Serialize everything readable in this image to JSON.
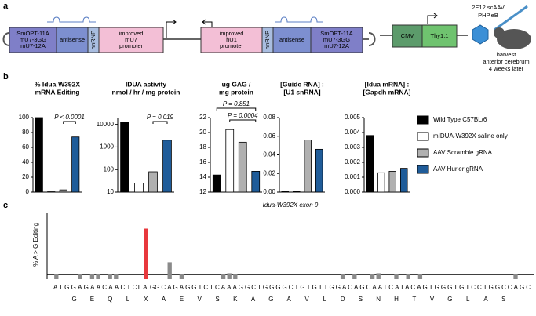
{
  "panels": {
    "a": "a",
    "b": "b",
    "c": "c"
  },
  "diagram": {
    "left_cassette": [
      "SmOPT-11A",
      "mU7-3GG",
      "mU7-12A"
    ],
    "antisense_left": "antisense",
    "hnrnp_left": "hnRNP",
    "promoter_left": [
      "improved",
      "mU7",
      "promoter"
    ],
    "promoter_right": [
      "improved",
      "hU1",
      "promoter"
    ],
    "hnrnp_right": "hnRNP",
    "antisense_right": "antisense",
    "right_cassette": [
      "SmOPT-11A",
      "mU7-3GG",
      "mU7-12A"
    ],
    "cmv": "CMV",
    "thy": "Thy1.1",
    "vector": [
      "2E12 scAAV",
      "PHP.eB"
    ],
    "harvest": [
      "harvest",
      "anterior cerebrum",
      "4 weeks later"
    ]
  },
  "legend": [
    {
      "name": "Wild Type C57BL/6",
      "color": "#000000"
    },
    {
      "name": "mIDUA-W392X saline only",
      "color": "#ffffff"
    },
    {
      "name": "AAV Scramble gRNA",
      "color": "#b0b0b0"
    },
    {
      "name": "AAV Hurler gRNA",
      "color": "#1f5c99"
    }
  ],
  "chart_data": [
    {
      "type": "bar",
      "title": [
        "% Idua-W392X",
        "mRNA Editing"
      ],
      "values": [
        100,
        0.5,
        3,
        74
      ],
      "ylim": [
        0,
        100
      ],
      "yticks": [
        0,
        20,
        40,
        60,
        80,
        100
      ],
      "annotations": [
        "P < 0.0001"
      ]
    },
    {
      "type": "bar",
      "title": [
        "IDUA activity",
        "nmol / hr / mg protein"
      ],
      "values": [
        12000,
        25,
        80,
        2000
      ],
      "log": true,
      "ylim": [
        10,
        20000
      ],
      "yticks": [
        10,
        100,
        1000,
        10000
      ],
      "annotations": [
        "P = 0.019"
      ]
    },
    {
      "type": "bar",
      "title": [
        "ug GAG /",
        "mg protein"
      ],
      "values": [
        14.3,
        20.4,
        18.7,
        14.8
      ],
      "ylim": [
        12,
        22
      ],
      "yticks": [
        12,
        14,
        16,
        18,
        20,
        22
      ],
      "annotations": [
        "P = 0.851",
        "P = 0.0004"
      ]
    },
    {
      "type": "bar",
      "title": [
        "[Guide RNA] :",
        "[U1 snRNA]"
      ],
      "values": [
        0.0005,
        0.0005,
        0.056,
        0.046
      ],
      "ylim": [
        0,
        0.08
      ],
      "yticks": [
        {
          "value": 0,
          "label": "0.00"
        },
        {
          "value": 0.02,
          "label": "0.02"
        },
        {
          "value": 0.04,
          "label": "0.04"
        },
        {
          "value": 0.06,
          "label": "0.06"
        },
        {
          "value": 0.08,
          "label": "0.08"
        }
      ]
    },
    {
      "type": "bar",
      "title": [
        "[Idua mRNA] :",
        "[Gapdh mRNA]"
      ],
      "values": [
        0.0038,
        0.0013,
        0.0014,
        0.0016
      ],
      "ylim": [
        0,
        0.005
      ],
      "yticks": [
        {
          "value": 0,
          "label": "0.000"
        },
        {
          "value": 0.001,
          "label": "0.001"
        },
        {
          "value": 0.002,
          "label": "0.002"
        },
        {
          "value": 0.003,
          "label": "0.003"
        },
        {
          "value": 0.004,
          "label": "0.004"
        },
        {
          "value": 0.005,
          "label": "0.005"
        }
      ]
    },
    {
      "type": "seqbar",
      "title": "Idua-W392X exon 9",
      "ylabel": "% A > G Editing",
      "color": "#8a8a8a",
      "highlight_color": "#e8383d",
      "ylim": [
        0,
        100
      ],
      "sequence": [
        "ATGGAGAACAACTC",
        "TAG",
        "GCAGAGGTCTCAAAGGCTGGGGCTGTGTTGGACAGCAATCATACAGTGGGTGTCCTGGCCAGC"
      ],
      "amino_acids": [
        "G",
        "E",
        "Q",
        "L",
        "X",
        "A",
        "E",
        "V",
        "S",
        "K",
        "A",
        "G",
        "A",
        "V",
        "L",
        "D",
        "S",
        "N",
        "H",
        "T",
        "V",
        "G",
        "L",
        "A",
        "S"
      ],
      "values": [
        1,
        null,
        null,
        null,
        1,
        null,
        1,
        1,
        null,
        1,
        1,
        null,
        null,
        null,
        null,
        75,
        null,
        null,
        null,
        20,
        null,
        1,
        null,
        null,
        null,
        null,
        null,
        null,
        1,
        2,
        1,
        null,
        null,
        null,
        null,
        null,
        null,
        null,
        null,
        null,
        null,
        null,
        null,
        null,
        null,
        null,
        null,
        null,
        1,
        null,
        1,
        null,
        null,
        1,
        2,
        null,
        null,
        1,
        null,
        1,
        null,
        1,
        null,
        null,
        null,
        null,
        null,
        null,
        null,
        null,
        null,
        null,
        null,
        null,
        null,
        null,
        null,
        1,
        null,
        null
      ]
    }
  ]
}
